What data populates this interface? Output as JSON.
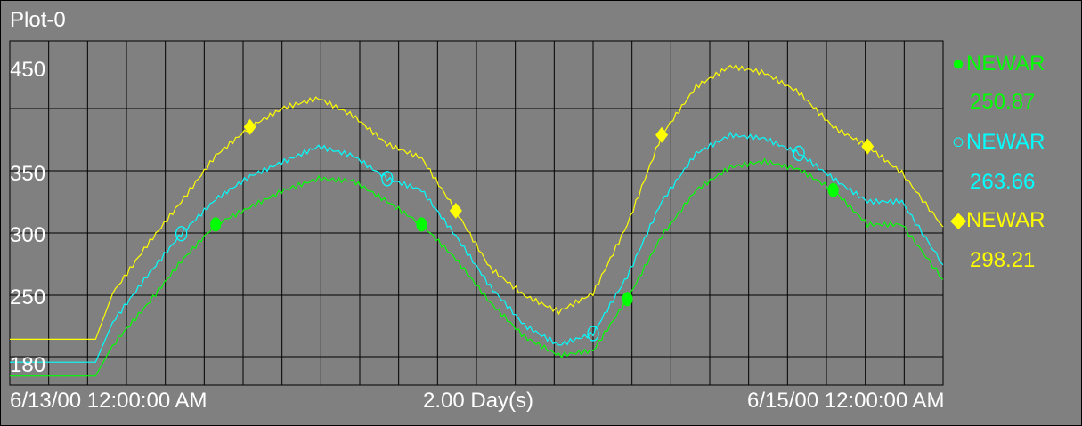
{
  "title": "Plot-0",
  "colors": {
    "background": "#808080",
    "grid": "#000000",
    "text": "#ffffff"
  },
  "x_labels": {
    "start": "6/13/00 12:00:00 AM",
    "span": "2.00 Day(s)",
    "end": "6/15/00 12:00:00 AM"
  },
  "legend": [
    {
      "name": "NEWAR",
      "value": "250.87",
      "color": "#00ff00",
      "marker": "filled-circle-icon"
    },
    {
      "name": "NEWAR",
      "value": "263.66",
      "color": "#00ffff",
      "marker": "open-circle-icon"
    },
    {
      "name": "NEWAR",
      "value": "298.21",
      "color": "#ffff00",
      "marker": "diamond-icon"
    }
  ],
  "chart_data": {
    "type": "line",
    "title": "Plot-0",
    "x_unit": "days since 6/13/00 12:00:00 AM",
    "xlim": [
      -0.3,
      2.42
    ],
    "ylim": [
      160,
      460
    ],
    "y_ticks": [
      180,
      250,
      300,
      350,
      450
    ],
    "grid": true,
    "legend_position": "right",
    "series": [
      {
        "name": "NEWAR",
        "color": "#00ff00",
        "x": [
          -0.3,
          -0.05,
          0,
          0.1,
          0.2,
          0.3,
          0.4,
          0.5,
          0.6,
          0.7,
          0.8,
          0.9,
          1.0,
          1.1,
          1.2,
          1.3,
          1.4,
          1.5,
          1.6,
          1.7,
          1.8,
          1.9,
          2.0,
          2.1,
          2.2,
          2.3,
          2.42
        ],
        "y": [
          168,
          168,
          195,
          230,
          268,
          300,
          315,
          330,
          340,
          338,
          320,
          300,
          270,
          232,
          202,
          186,
          190,
          235,
          290,
          330,
          350,
          355,
          348,
          330,
          300,
          300,
          252
        ]
      },
      {
        "name": "NEWAR",
        "color": "#00ffff",
        "x": [
          -0.3,
          -0.05,
          0,
          0.1,
          0.2,
          0.3,
          0.4,
          0.5,
          0.6,
          0.7,
          0.8,
          0.9,
          1.0,
          1.1,
          1.2,
          1.3,
          1.4,
          1.5,
          1.6,
          1.7,
          1.8,
          1.9,
          2.0,
          2.1,
          2.2,
          2.3,
          2.42
        ],
        "y": [
          180,
          180,
          215,
          255,
          292,
          322,
          342,
          355,
          368,
          360,
          340,
          330,
          290,
          246,
          212,
          195,
          205,
          255,
          320,
          362,
          378,
          375,
          362,
          340,
          320,
          320,
          265
        ]
      },
      {
        "name": "NEWAR",
        "color": "#ffff00",
        "x": [
          -0.3,
          -0.05,
          0,
          0.1,
          0.2,
          0.3,
          0.4,
          0.5,
          0.6,
          0.7,
          0.8,
          0.9,
          1.0,
          1.1,
          1.2,
          1.3,
          1.4,
          1.5,
          1.6,
          1.7,
          1.8,
          1.9,
          2.0,
          2.1,
          2.2,
          2.3,
          2.42
        ],
        "y": [
          200,
          200,
          240,
          282,
          320,
          360,
          385,
          402,
          410,
          395,
          370,
          358,
          312,
          262,
          238,
          224,
          240,
          300,
          378,
          420,
          438,
          432,
          415,
          385,
          368,
          345,
          298
        ]
      }
    ]
  }
}
